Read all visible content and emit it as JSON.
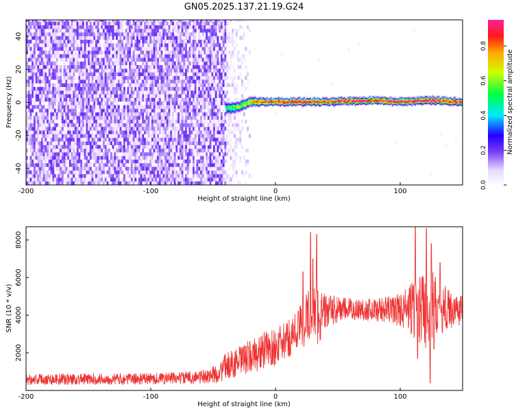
{
  "figure": {
    "title": "GN05.2025.137.21.19.G24"
  },
  "chart_data": [
    {
      "type": "heatmap",
      "xlabel": "Height of straight line (km)",
      "ylabel": "Frequency (Hz)",
      "xlim": [
        -200,
        150
      ],
      "ylim": [
        -50,
        50
      ],
      "xticks": [
        -200,
        -100,
        0,
        100
      ],
      "yticks": [
        -40,
        -20,
        0,
        20,
        40
      ],
      "grid": false,
      "regions": [
        {
          "x_range": [
            -200,
            -40
          ],
          "freq_range": [
            -50,
            50
          ],
          "amplitude": 0.15,
          "pattern": "broadband noise"
        },
        {
          "x_range": [
            -40,
            -20
          ],
          "freq_range": [
            -50,
            50
          ],
          "amplitude": 0.08,
          "pattern": "fading noise"
        },
        {
          "x_range": [
            -40,
            150
          ],
          "center_frequency": [
            [
              -40,
              -4
            ],
            [
              -30,
              -3
            ],
            [
              -20,
              0
            ],
            [
              -10,
              0
            ],
            [
              0,
              0
            ],
            [
              40,
              0
            ],
            [
              80,
              1
            ],
            [
              100,
              0
            ],
            [
              120,
              1
            ],
            [
              150,
              0
            ]
          ],
          "peak_amplitude": 0.95,
          "pattern": "narrow tone"
        }
      ],
      "colorbar": {
        "label": "Normalized spectral amplitude",
        "range": [
          0,
          0.95
        ],
        "ticks": [
          "0.0",
          "0.2",
          "0.4",
          "0.6",
          "0.8"
        ]
      }
    },
    {
      "type": "line",
      "xlabel": "Height of straight line (km)",
      "ylabel": "SNR (10 * v/v)",
      "xlim": [
        -200,
        150
      ],
      "ylim": [
        0,
        8700
      ],
      "xticks": [
        -200,
        -100,
        0,
        100
      ],
      "yticks": [
        2000,
        4000,
        6000,
        8000
      ],
      "grid": false,
      "series": [
        {
          "color": "#ee3333",
          "envelope": {
            "x": [
              -200,
              -150,
              -100,
              -60,
              -45,
              -40,
              -30,
              -20,
              -10,
              0,
              10,
              20,
              25,
              30,
              35,
              40,
              50,
              60,
              80,
              90,
              100,
              110,
              115,
              120,
              125,
              130,
              140,
              150
            ],
            "center": [
              600,
              600,
              620,
              700,
              900,
              1300,
              1500,
              1800,
              2100,
              2300,
              2700,
              3400,
              3800,
              4100,
              4000,
              4200,
              4300,
              4300,
              4300,
              4300,
              4300,
              4300,
              4400,
              4400,
              4500,
              4400,
              4300,
              4300
            ],
            "spread": [
              300,
              300,
              300,
              350,
              500,
              700,
              800,
              900,
              1000,
              1000,
              1000,
              1200,
              1500,
              1800,
              1600,
              900,
              700,
              600,
              600,
              700,
              900,
              1500,
              2000,
              2200,
              2000,
              1500,
              1000,
              800
            ]
          },
          "spikes": [
            {
              "x": 22,
              "y": 6300
            },
            {
              "x": 28,
              "y": 8400
            },
            {
              "x": 33,
              "y": 8300
            },
            {
              "x": 30,
              "y": 7000
            },
            {
              "x": 112,
              "y": 8700
            },
            {
              "x": 121,
              "y": 8600
            },
            {
              "x": 125,
              "y": 7800
            },
            {
              "x": 132,
              "y": 6800
            },
            {
              "x": 124,
              "y": 400
            },
            {
              "x": 114,
              "y": 1700
            },
            {
              "x": 127,
              "y": 2200
            }
          ]
        }
      ]
    }
  ]
}
